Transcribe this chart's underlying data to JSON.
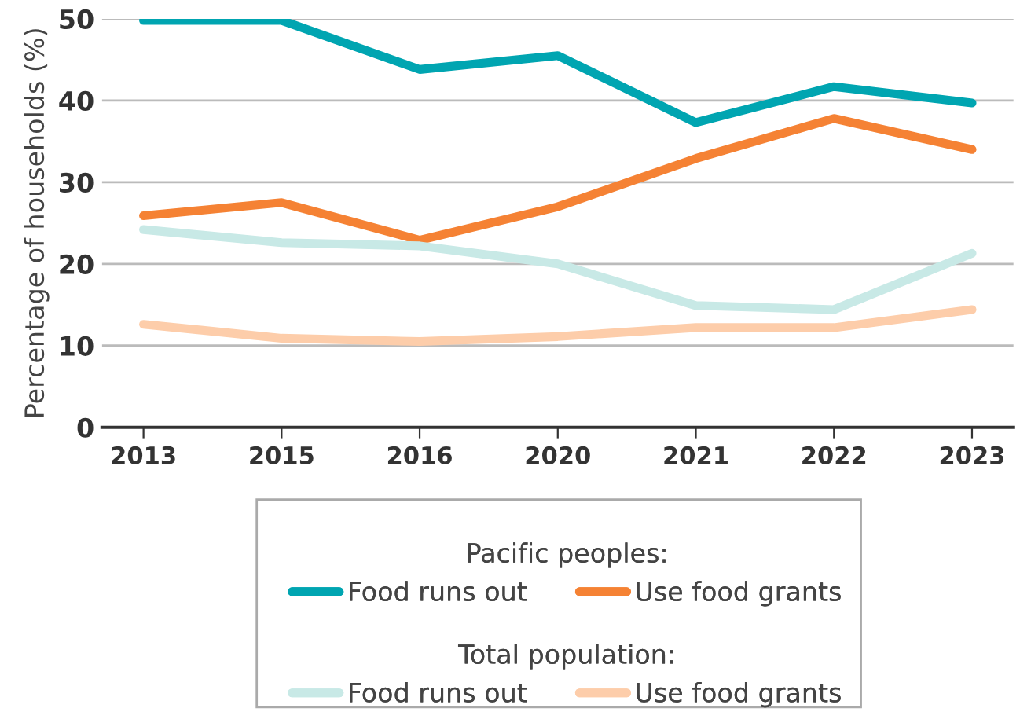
{
  "chart_data": {
    "type": "line",
    "ylabel": "Percentage of households (%)",
    "categories": [
      "2013",
      "2015",
      "2016",
      "2020",
      "2021",
      "2022",
      "2023"
    ],
    "series": [
      {
        "name": "Food runs out",
        "color": "#00a5b1",
        "values": [
          49.8,
          49.8,
          43.8,
          45.5,
          37.3,
          41.7,
          39.7
        ]
      },
      {
        "name": "Use food grants",
        "color": "#f58234",
        "values": [
          25.9,
          27.5,
          22.9,
          27.0,
          32.9,
          37.8,
          34.0
        ]
      },
      {
        "name": "Food runs out",
        "color": "#c8e9e6",
        "values": [
          24.2,
          22.6,
          22.2,
          20.0,
          14.9,
          14.4,
          21.3
        ]
      },
      {
        "name": "Use food grants",
        "color": "#fdcdaa",
        "values": [
          12.6,
          10.9,
          10.5,
          11.1,
          12.2,
          12.2,
          14.4
        ]
      }
    ],
    "legend_title": "Pacific peoples:",
    "annotations": [
      "Total population:"
    ],
    "ylim": [
      0,
      50
    ],
    "yticks": [
      0,
      10,
      20,
      30,
      40,
      50
    ],
    "grid": "y",
    "legend": "bottom",
    "marker": "none",
    "line_style": "solid"
  }
}
